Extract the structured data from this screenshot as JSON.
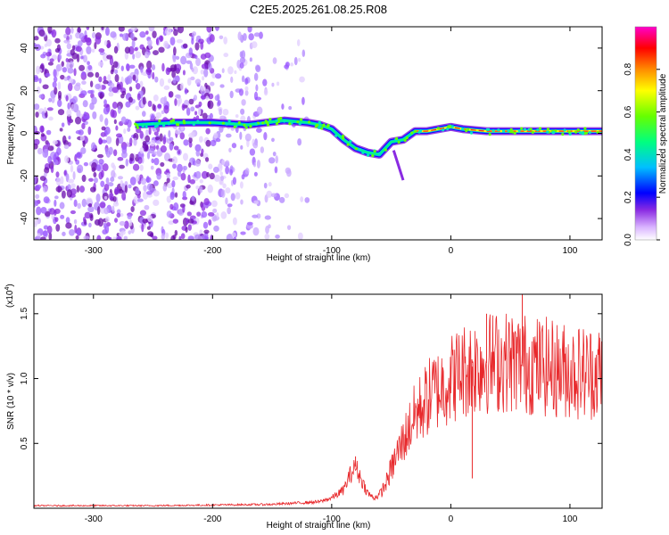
{
  "title": "C2E5.2025.261.08.25.R08",
  "chart_data": [
    {
      "type": "heatmap",
      "name": "spectrogram",
      "xlabel": "Height of straight line (km)",
      "ylabel": "Frequency (Hz)",
      "xlim": [
        -350,
        127
      ],
      "ylim": [
        -50,
        50
      ],
      "xticks": [
        -300,
        -200,
        -100,
        0,
        100
      ],
      "xtick_labels": [
        "-300",
        "-200",
        "-100",
        "0",
        "100"
      ],
      "yticks": [
        -40,
        -20,
        0,
        20,
        40
      ],
      "ytick_labels": [
        "-40",
        "-20",
        "0",
        "20",
        "40"
      ],
      "ridge": {
        "x": [
          -265,
          -230,
          -200,
          -170,
          -140,
          -120,
          -110,
          -100,
          -90,
          -80,
          -70,
          -60,
          -50,
          -40,
          -30,
          -20,
          -10,
          0,
          10,
          30,
          60,
          90,
          127
        ],
        "y": [
          4,
          5,
          5,
          4,
          6,
          5,
          4,
          2,
          -3,
          -7,
          -9,
          -10,
          -4,
          -3,
          1,
          1,
          2,
          3,
          2,
          1,
          1,
          1,
          1
        ]
      },
      "colorbar": {
        "label": "Normalized spectral amplitude",
        "range": [
          0,
          1
        ],
        "ticks": [
          0.0,
          0.2,
          0.4,
          0.6,
          0.8
        ],
        "tick_labels": [
          "0.0",
          "0.2",
          "0.4",
          "0.6",
          "0.8"
        ],
        "colors": [
          "#ffffff",
          "#d9b3ff",
          "#8a2be2",
          "#0000ff",
          "#00bfff",
          "#00ff7f",
          "#66ff00",
          "#ffff00",
          "#ff8c00",
          "#ff0000",
          "#ff00cc"
        ]
      }
    },
    {
      "type": "line",
      "name": "snr",
      "xlabel": "Height of straight line (km)",
      "ylabel": "SNR (10 * v/v)",
      "multiplier": "(x10",
      "multiplier_exp": "4",
      "multiplier_close": ")",
      "xlim": [
        -350,
        127
      ],
      "ylim": [
        0,
        1.65
      ],
      "xticks": [
        -300,
        -200,
        -100,
        0,
        100
      ],
      "xtick_labels": [
        "-300",
        "-200",
        "-100",
        "0",
        "100"
      ],
      "yticks": [
        0.5,
        1.0,
        1.5
      ],
      "ytick_labels": [
        "0.5",
        "1.0",
        "1.5"
      ],
      "color": "#e8282b",
      "envelope": {
        "x": [
          -350,
          -250,
          -150,
          -110,
          -100,
          -90,
          -85,
          -80,
          -75,
          -70,
          -65,
          -60,
          -55,
          -50,
          -45,
          -40,
          -35,
          -30,
          -25,
          -20,
          -15,
          -10,
          -5,
          0,
          5,
          10,
          20,
          30,
          40,
          50,
          60,
          70,
          80,
          90,
          100,
          110,
          120,
          127
        ],
        "y": [
          0.02,
          0.02,
          0.03,
          0.05,
          0.08,
          0.14,
          0.25,
          0.32,
          0.22,
          0.12,
          0.08,
          0.1,
          0.18,
          0.3,
          0.42,
          0.52,
          0.62,
          0.72,
          0.78,
          0.84,
          0.9,
          0.92,
          0.96,
          1.0,
          1.03,
          1.06,
          1.1,
          1.12,
          1.13,
          1.13,
          1.12,
          1.1,
          1.09,
          1.07,
          1.06,
          1.05,
          1.05,
          1.05
        ]
      },
      "spikes": [
        {
          "x": 60,
          "y": 1.65
        },
        {
          "x": 30,
          "y": 1.5
        },
        {
          "x": 18,
          "y": 0.23
        },
        {
          "x": -80,
          "y": 0.4
        }
      ]
    }
  ]
}
